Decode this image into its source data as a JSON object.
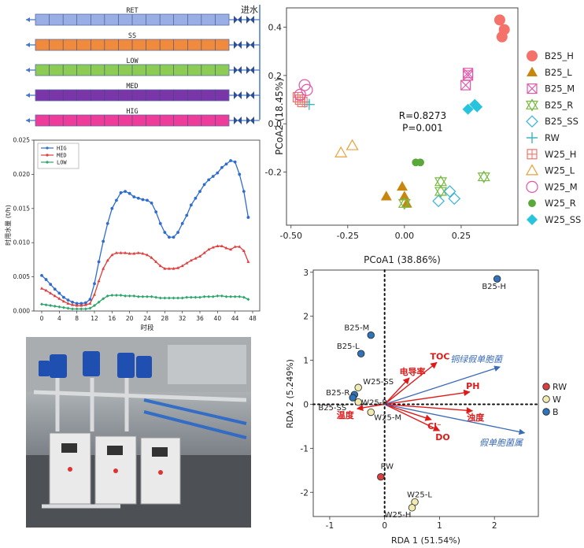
{
  "pipes": {
    "inlet_label": "进水",
    "rows": [
      {
        "name": "RET",
        "color": "#9aaee6"
      },
      {
        "name": "SS",
        "color": "#f08a3c"
      },
      {
        "name": "LOW",
        "color": "#8ccc55"
      },
      {
        "name": "MED",
        "color": "#7a36a8"
      },
      {
        "name": "HIG",
        "color": "#ee3c9a"
      }
    ]
  },
  "chart_data": [
    {
      "type": "line",
      "ylabel": "时用水量 (t/h)",
      "xlabel": "时段",
      "xlim": [
        0,
        48
      ],
      "ylim": [
        0,
        0.025
      ],
      "xticks": [
        0,
        4,
        8,
        12,
        16,
        20,
        24,
        28,
        32,
        36,
        40,
        44,
        48
      ],
      "yticks": [
        "0.000",
        "0.005",
        "0.010",
        "0.015",
        "0.020",
        "0.025"
      ],
      "legend_position": "top-left",
      "x": [
        0,
        1,
        2,
        3,
        4,
        5,
        6,
        7,
        8,
        9,
        10,
        11,
        12,
        13,
        14,
        15,
        16,
        17,
        18,
        19,
        20,
        21,
        22,
        23,
        24,
        25,
        26,
        27,
        28,
        29,
        30,
        31,
        32,
        33,
        34,
        35,
        36,
        37,
        38,
        39,
        40,
        41,
        42,
        43,
        44,
        45,
        46,
        47
      ],
      "series": [
        {
          "name": "HIG",
          "color": "#2f6ccf",
          "values": [
            0.0052,
            0.0046,
            0.0039,
            0.0032,
            0.0026,
            0.002,
            0.0016,
            0.0013,
            0.0011,
            0.0011,
            0.0012,
            0.0017,
            0.004,
            0.0072,
            0.0102,
            0.0128,
            0.015,
            0.0162,
            0.0173,
            0.0175,
            0.0172,
            0.0167,
            0.0165,
            0.0163,
            0.0162,
            0.0158,
            0.0145,
            0.0128,
            0.0115,
            0.0108,
            0.0108,
            0.0115,
            0.0128,
            0.014,
            0.0155,
            0.0165,
            0.0175,
            0.0185,
            0.0192,
            0.0197,
            0.0202,
            0.021,
            0.0215,
            0.022,
            0.0218,
            0.02,
            0.0175,
            0.0137
          ]
        },
        {
          "name": "MED",
          "color": "#e03c3c",
          "values": [
            0.0033,
            0.003,
            0.0026,
            0.0022,
            0.0018,
            0.0014,
            0.0011,
            0.0009,
            0.0008,
            0.0008,
            0.0009,
            0.0011,
            0.0024,
            0.0044,
            0.0062,
            0.0074,
            0.0082,
            0.0085,
            0.0085,
            0.0085,
            0.0084,
            0.0084,
            0.0085,
            0.0084,
            0.0082,
            0.0078,
            0.0072,
            0.0066,
            0.0062,
            0.0062,
            0.0062,
            0.0063,
            0.0066,
            0.007,
            0.0074,
            0.0077,
            0.008,
            0.0085,
            0.009,
            0.0093,
            0.0095,
            0.0095,
            0.0092,
            0.009,
            0.0094,
            0.0094,
            0.0088,
            0.0072
          ]
        },
        {
          "name": "LOW",
          "color": "#2ca66a",
          "values": [
            0.001,
            0.0009,
            0.0008,
            0.0007,
            0.0006,
            0.0005,
            0.0004,
            0.0003,
            0.0003,
            0.0003,
            0.0003,
            0.0004,
            0.0008,
            0.0013,
            0.0018,
            0.0022,
            0.0023,
            0.0023,
            0.0023,
            0.0022,
            0.0022,
            0.0022,
            0.0021,
            0.0021,
            0.0021,
            0.0021,
            0.002,
            0.0019,
            0.0019,
            0.0019,
            0.0019,
            0.0019,
            0.0019,
            0.002,
            0.002,
            0.002,
            0.002,
            0.0021,
            0.0021,
            0.0021,
            0.0022,
            0.0022,
            0.0021,
            0.0021,
            0.0021,
            0.0021,
            0.002,
            0.0017
          ]
        }
      ]
    },
    {
      "type": "scatter",
      "xlabel": "PCoA1 (38.86%)",
      "ylabel": "PCoA2 (18.45%)",
      "xlim": [
        -0.52,
        0.5
      ],
      "ylim": [
        -0.42,
        0.48
      ],
      "xticks": [
        -0.5,
        -0.25,
        0.0,
        0.25
      ],
      "xtick_labels": [
        "-0.50",
        "-0.25",
        "0.00",
        "0.25"
      ],
      "yticks": [
        0.4,
        0.2,
        0.0,
        -0.2
      ],
      "ytick_labels": [
        "0.4",
        "0.2",
        "0.0",
        "-0.2"
      ],
      "annotations": [
        {
          "text": "R=0.8273",
          "x": 0.08,
          "y": 0.02
        },
        {
          "text": "P=0.001",
          "x": 0.08,
          "y": -0.03
        }
      ],
      "legend_position": "right",
      "series": [
        {
          "name": "B25_H",
          "marker": "circle-filled",
          "color": "#f4726a",
          "points": [
            [
              0.42,
              0.43
            ],
            [
              0.44,
              0.39
            ],
            [
              0.43,
              0.36
            ]
          ]
        },
        {
          "name": "B25_L",
          "marker": "triangle-filled",
          "color": "#c8860f",
          "points": [
            [
              -0.08,
              -0.3
            ],
            [
              -0.01,
              -0.26
            ],
            [
              0.0,
              -0.3
            ],
            [
              0.01,
              -0.33
            ]
          ]
        },
        {
          "name": "B25_M",
          "marker": "box-x",
          "color": "#e255a8",
          "points": [
            [
              0.28,
              0.21
            ],
            [
              0.28,
              0.2
            ],
            [
              0.27,
              0.16
            ]
          ]
        },
        {
          "name": "B25_R",
          "marker": "star-triangles",
          "color": "#77bb41",
          "points": [
            [
              0.0,
              -0.33
            ],
            [
              0.16,
              -0.24
            ],
            [
              0.16,
              -0.28
            ],
            [
              0.35,
              -0.22
            ]
          ]
        },
        {
          "name": "B25_SS",
          "marker": "diamond-open",
          "color": "#36b5d9",
          "points": [
            [
              0.2,
              -0.28
            ],
            [
              0.15,
              -0.32
            ],
            [
              0.22,
              -0.31
            ]
          ]
        },
        {
          "name": "RW",
          "marker": "plus",
          "color": "#3ab7c0",
          "points": [
            [
              -0.42,
              0.08
            ],
            [
              -0.44,
              0.09
            ]
          ]
        },
        {
          "name": "W25_H",
          "marker": "box-plus",
          "color": "#f4726a",
          "points": [
            [
              -0.47,
              0.11
            ],
            [
              -0.46,
              0.1
            ],
            [
              -0.45,
              0.09
            ]
          ]
        },
        {
          "name": "W25_L",
          "marker": "triangle-open",
          "color": "#e8a03a",
          "points": [
            [
              -0.28,
              -0.12
            ],
            [
              -0.23,
              -0.09
            ]
          ]
        },
        {
          "name": "W25_M",
          "marker": "circle-open",
          "color": "#e255a8",
          "points": [
            [
              -0.44,
              0.16
            ],
            [
              -0.43,
              0.14
            ],
            [
              -0.46,
              0.12
            ]
          ]
        },
        {
          "name": "W25_R",
          "marker": "circle-small",
          "color": "#5aa83a",
          "points": [
            [
              0.05,
              -0.16
            ],
            [
              0.07,
              -0.16
            ]
          ]
        },
        {
          "name": "W25_SS",
          "marker": "diamond-filled",
          "color": "#28c3dc",
          "points": [
            [
              0.31,
              0.08
            ],
            [
              0.28,
              0.06
            ],
            [
              0.32,
              0.07
            ]
          ]
        }
      ]
    },
    {
      "type": "scatter",
      "xlabel": "RDA 1 (51.54%)",
      "ylabel": "RDA 2 (5.249%)",
      "xlim": [
        -1.3,
        2.8
      ],
      "ylim": [
        -2.55,
        3.05
      ],
      "xticks": [
        -1,
        0,
        1,
        2
      ],
      "yticks": [
        3,
        2,
        1,
        0,
        -1,
        -2
      ],
      "legend_position": "right",
      "groups": [
        {
          "name": "RW",
          "color": "#d64040"
        },
        {
          "name": "W",
          "color": "#f0ebb0"
        },
        {
          "name": "B",
          "color": "#2f74b8"
        }
      ],
      "samples": [
        {
          "label": "B25-H",
          "group": "B",
          "x": 2.05,
          "y": 2.85
        },
        {
          "label": "B25-M",
          "group": "B",
          "x": -0.25,
          "y": 1.57
        },
        {
          "label": "B25-L",
          "group": "B",
          "x": -0.43,
          "y": 1.15
        },
        {
          "label": "B25-R",
          "group": "B",
          "x": -0.55,
          "y": 0.22
        },
        {
          "label": "B25-SS",
          "group": "B",
          "x": -0.58,
          "y": 0.15
        },
        {
          "label": "W25-SS",
          "group": "W",
          "x": -0.48,
          "y": 0.38
        },
        {
          "label": "W25-R",
          "group": "W",
          "x": -0.48,
          "y": 0.05
        },
        {
          "label": "W25-M",
          "group": "W",
          "x": -0.25,
          "y": -0.18
        },
        {
          "label": "RW",
          "group": "RW",
          "x": -0.07,
          "y": -1.65
        },
        {
          "label": "W25-L",
          "group": "W",
          "x": 0.55,
          "y": -2.22
        },
        {
          "label": "W25-H",
          "group": "W",
          "x": 0.5,
          "y": -2.35
        }
      ],
      "env_vectors": [
        {
          "label": "TOC",
          "x": 0.95,
          "y": 0.95
        },
        {
          "label": "电导率",
          "x": 0.45,
          "y": 0.6
        },
        {
          "label": "PH",
          "x": 1.55,
          "y": 0.28
        },
        {
          "label": "浊度",
          "x": 1.6,
          "y": -0.15
        },
        {
          "label": "Cl⁻",
          "x": 0.85,
          "y": -0.35
        },
        {
          "label": "DO",
          "x": 1.0,
          "y": -0.6
        },
        {
          "label": "温度",
          "x": -0.5,
          "y": -0.1
        }
      ],
      "species_vectors": [
        {
          "label": "铜绿假单胞菌",
          "x": 2.1,
          "y": 0.85
        },
        {
          "label": "假单胞菌属",
          "x": 2.55,
          "y": -0.65
        }
      ]
    }
  ]
}
